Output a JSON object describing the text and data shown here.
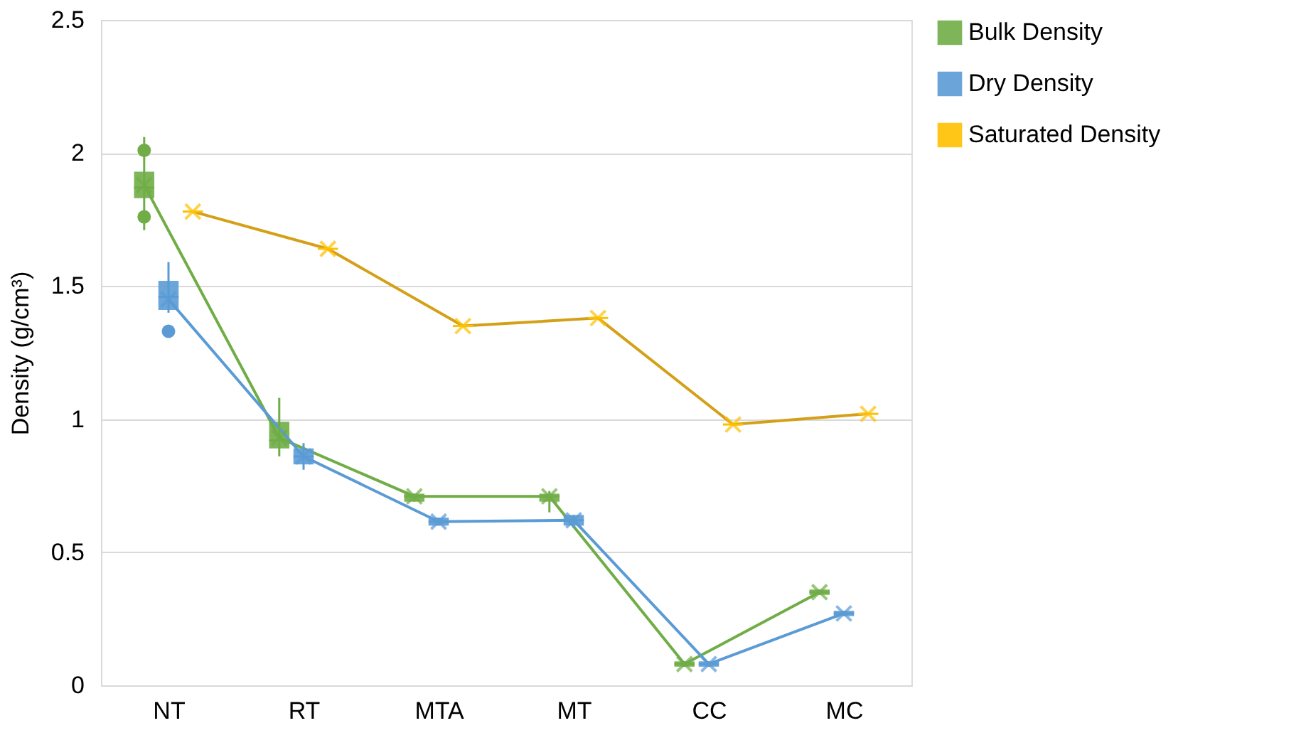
{
  "chart_data": {
    "type": "box",
    "ylabel": "Density (g/cm³)",
    "categories": [
      "NT",
      "RT",
      "MTA",
      "MT",
      "CC",
      "MC"
    ],
    "ylim": [
      0,
      2.5
    ],
    "yticks": [
      0,
      0.5,
      1,
      1.5,
      2,
      2.5
    ],
    "grid": "y",
    "legend": "right",
    "marker": "cross",
    "series": [
      {
        "name": "Bulk Density",
        "color": "#70ad47",
        "boxes": [
          {
            "low": 1.71,
            "q1": 1.83,
            "median": 1.87,
            "q3": 1.93,
            "high": 2.06,
            "mean": 1.88,
            "outliers": [
              2.01,
              1.76
            ]
          },
          {
            "low": 0.86,
            "q1": 0.89,
            "median": 0.92,
            "q3": 0.99,
            "high": 1.08,
            "mean": 0.93
          },
          {
            "low": 0.69,
            "q1": 0.69,
            "median": 0.71,
            "q3": 0.72,
            "high": 0.72,
            "mean": 0.71
          },
          {
            "low": 0.65,
            "q1": 0.69,
            "median": 0.71,
            "q3": 0.72,
            "high": 0.73,
            "mean": 0.71
          },
          {
            "low": 0.07,
            "q1": 0.07,
            "median": 0.08,
            "q3": 0.09,
            "high": 0.09,
            "mean": 0.08
          },
          {
            "low": 0.34,
            "q1": 0.34,
            "median": 0.35,
            "q3": 0.36,
            "high": 0.36,
            "mean": 0.35
          }
        ]
      },
      {
        "name": "Dry Density",
        "color": "#5b9bd5",
        "boxes": [
          {
            "low": 1.4,
            "q1": 1.41,
            "median": 1.46,
            "q3": 1.52,
            "high": 1.59,
            "mean": 1.45,
            "outliers": [
              1.33
            ]
          },
          {
            "low": 0.81,
            "q1": 0.83,
            "median": 0.86,
            "q3": 0.89,
            "high": 0.91,
            "mean": 0.86
          },
          {
            "low": 0.6,
            "q1": 0.6,
            "median": 0.615,
            "q3": 0.63,
            "high": 0.63,
            "mean": 0.615
          },
          {
            "low": 0.59,
            "q1": 0.6,
            "median": 0.62,
            "q3": 0.64,
            "high": 0.64,
            "mean": 0.62
          },
          {
            "low": 0.07,
            "q1": 0.07,
            "median": 0.08,
            "q3": 0.09,
            "high": 0.09,
            "mean": 0.08
          },
          {
            "low": 0.26,
            "q1": 0.26,
            "median": 0.27,
            "q3": 0.28,
            "high": 0.28,
            "mean": 0.27
          }
        ]
      },
      {
        "name": "Saturated Density",
        "color": "#ffc000",
        "boxes": [
          {
            "low": 1.78,
            "q1": 1.78,
            "median": 1.78,
            "q3": 1.78,
            "high": 1.78,
            "mean": 1.78
          },
          {
            "low": 1.64,
            "q1": 1.64,
            "median": 1.64,
            "q3": 1.64,
            "high": 1.64,
            "mean": 1.64
          },
          {
            "low": 1.35,
            "q1": 1.35,
            "median": 1.35,
            "q3": 1.35,
            "high": 1.35,
            "mean": 1.35
          },
          {
            "low": 1.38,
            "q1": 1.38,
            "median": 1.38,
            "q3": 1.38,
            "high": 1.38,
            "mean": 1.38
          },
          {
            "low": 0.98,
            "q1": 0.98,
            "median": 0.98,
            "q3": 0.98,
            "high": 0.98,
            "mean": 0.98
          },
          {
            "low": 1.02,
            "q1": 1.02,
            "median": 1.02,
            "q3": 1.02,
            "high": 1.02,
            "mean": 1.02
          }
        ]
      },
      {
        "type": "line",
        "marker": "none",
        "color": "#70ad47",
        "values": [
          1.88,
          0.93,
          0.71,
          0.71,
          0.08,
          0.35
        ]
      },
      {
        "type": "line",
        "marker": "none",
        "color": "#5b9bd5",
        "values": [
          1.45,
          0.86,
          0.615,
          0.62,
          0.08,
          0.27
        ]
      },
      {
        "type": "line",
        "marker": "none",
        "color": "#d4a017",
        "values": [
          1.78,
          1.64,
          1.35,
          1.38,
          0.98,
          1.02
        ]
      }
    ]
  }
}
